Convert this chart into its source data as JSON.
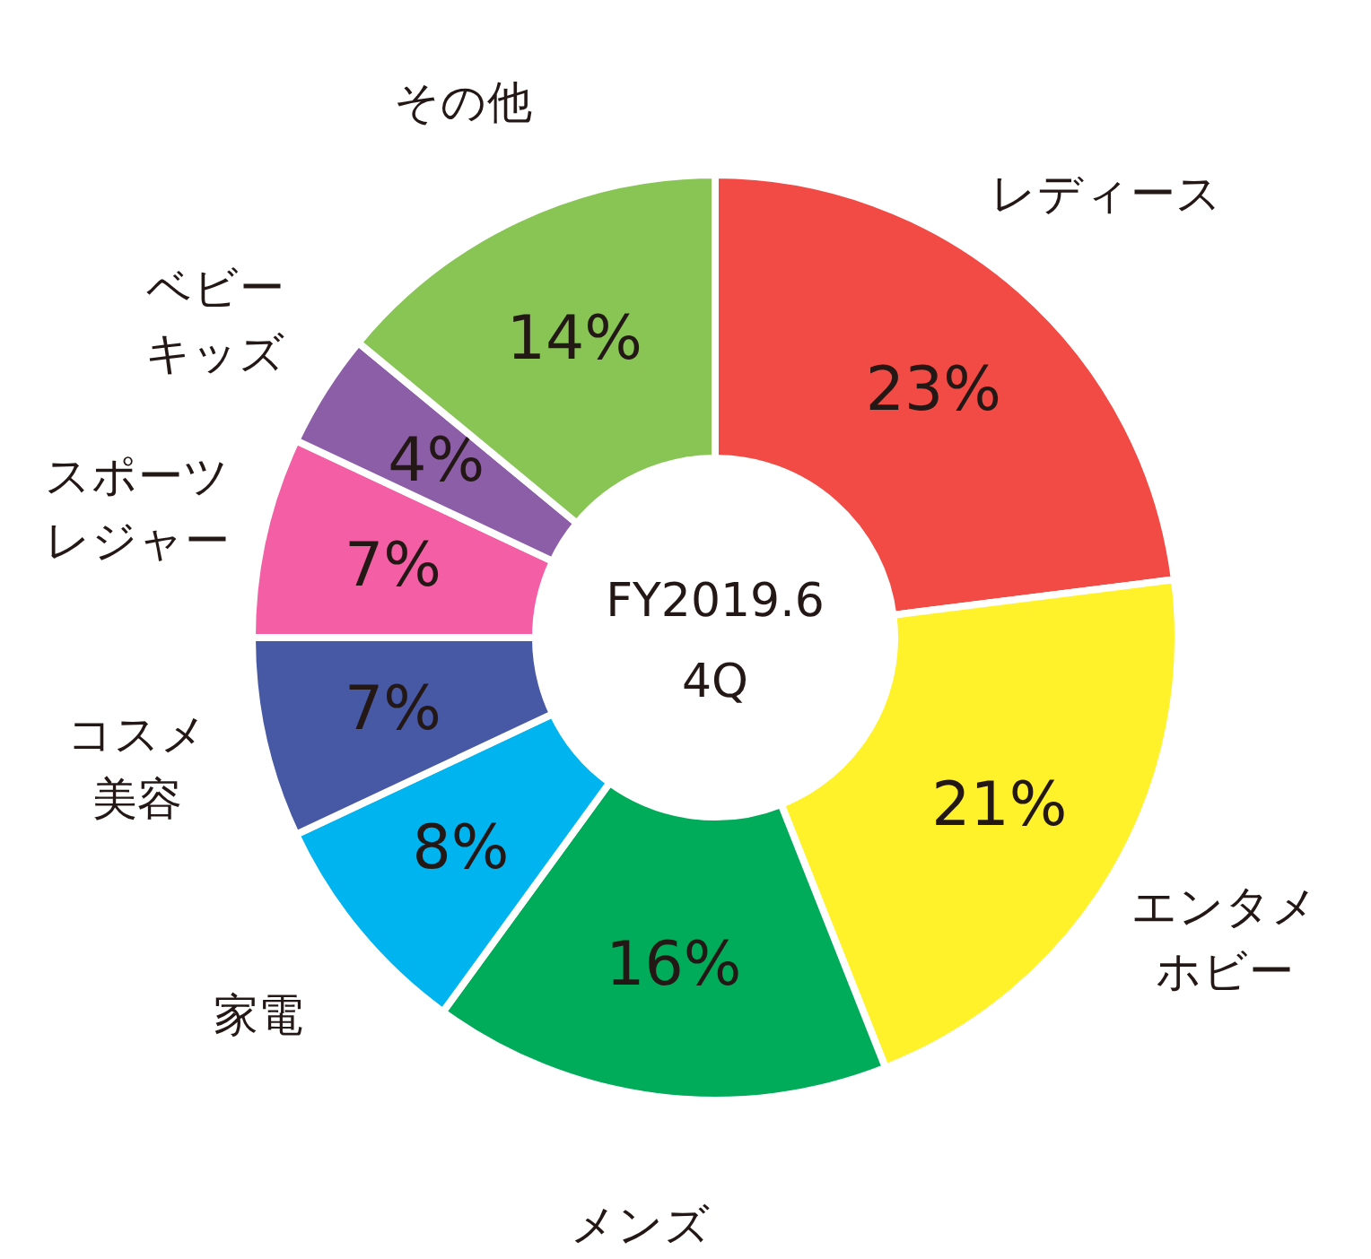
{
  "chart_data": {
    "type": "donut",
    "title": "FY2019.6",
    "subtitle": "4Q",
    "categories": [
      "レディース",
      "エンタメホビー",
      "メンズ",
      "家電",
      "コスメ美容",
      "スポーツレジャー",
      "ベビーキッズ",
      "その他"
    ],
    "values": [
      23,
      21,
      16,
      8,
      7,
      7,
      4,
      14
    ],
    "value_labels": [
      "23%",
      "21%",
      "16%",
      "8%",
      "7%",
      "7%",
      "4%",
      "14%"
    ],
    "colors": [
      "#f24a45",
      "#fff22a",
      "#00ab5a",
      "#00b4ef",
      "#4758a5",
      "#f35ea5",
      "#8d5ea8",
      "#88c555"
    ]
  }
}
